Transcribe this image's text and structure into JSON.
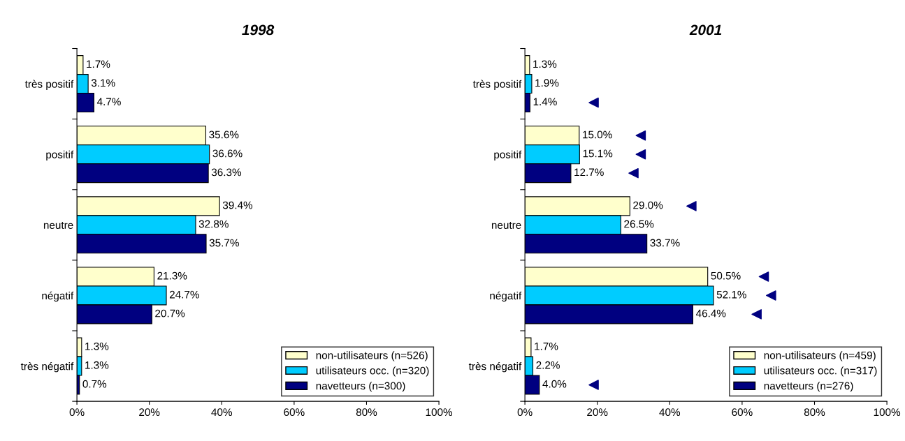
{
  "chart_data": [
    {
      "type": "bar",
      "orientation": "horizontal",
      "title": "1998",
      "categories": [
        "très positif",
        "positif",
        "neutre",
        "négatif",
        "très négatif"
      ],
      "series": [
        {
          "name": "non-utilisateurs (n=526)",
          "color": "#ffffcc",
          "values": [
            1.7,
            35.6,
            39.4,
            21.3,
            1.3
          ],
          "value_labels": [
            "1.7%",
            "35.6%",
            "39.4%",
            "21.3%",
            "1.3%"
          ]
        },
        {
          "name": "utilisateurs occ. (n=320)",
          "color": "#00ccff",
          "values": [
            3.1,
            36.6,
            32.8,
            24.7,
            1.3
          ],
          "value_labels": [
            "3.1%",
            "36.6%",
            "32.8%",
            "24.7%",
            "1.3%"
          ]
        },
        {
          "name": "navetteurs (n=300)",
          "color": "#000080",
          "values": [
            4.7,
            36.3,
            35.7,
            20.7,
            0.7
          ],
          "value_labels": [
            "4.7%",
            "36.3%",
            "35.7%",
            "20.7%",
            "0.7%"
          ]
        }
      ],
      "xlim": [
        0,
        100
      ],
      "xticks": [
        {
          "value": 0,
          "label": "0%"
        },
        {
          "value": 20,
          "label": "20%"
        },
        {
          "value": 40,
          "label": "40%"
        },
        {
          "value": 60,
          "label": "60%"
        },
        {
          "value": 80,
          "label": "80%"
        },
        {
          "value": 100,
          "label": "100%"
        }
      ],
      "grid": false,
      "legend": "bottom right"
    },
    {
      "type": "bar",
      "orientation": "horizontal",
      "title": "2001",
      "categories": [
        "très positif",
        "positif",
        "neutre",
        "négatif",
        "très négatif"
      ],
      "series": [
        {
          "name": "non-utilisateurs (n=459)",
          "color": "#ffffcc",
          "values": [
            1.3,
            15.0,
            29.0,
            50.5,
            1.7
          ],
          "value_labels": [
            "1.3%",
            "15.0%",
            "29.0%",
            "50.5%",
            "1.7%"
          ]
        },
        {
          "name": "utilisateurs occ. (n=317)",
          "color": "#00ccff",
          "values": [
            1.9,
            15.1,
            26.5,
            52.1,
            2.2
          ],
          "value_labels": [
            "1.9%",
            "15.1%",
            "26.5%",
            "52.1%",
            "2.2%"
          ]
        },
        {
          "name": "navetteurs (n=276)",
          "color": "#000080",
          "values": [
            1.4,
            12.7,
            33.7,
            46.4,
            4.0
          ],
          "value_labels": [
            "1.4%",
            "12.7%",
            "33.7%",
            "46.4%",
            "4.0%"
          ]
        },
        {
          "type": "scatter",
          "marker": "triangle",
          "color": "#000080",
          "values": [
            null,
            32,
            46,
            66,
            null
          ]
        },
        {
          "type": "scatter",
          "marker": "triangle",
          "color": "#000080",
          "values": [
            null,
            32,
            null,
            68,
            null
          ]
        },
        {
          "type": "scatter",
          "marker": "triangle",
          "color": "#000080",
          "values": [
            19,
            30,
            null,
            64,
            19
          ]
        }
      ],
      "xlim": [
        0,
        100
      ],
      "xticks": [
        {
          "value": 0,
          "label": "0%"
        },
        {
          "value": 20,
          "label": "20%"
        },
        {
          "value": 40,
          "label": "40%"
        },
        {
          "value": 60,
          "label": "60%"
        },
        {
          "value": 80,
          "label": "80%"
        },
        {
          "value": 100,
          "label": "100%"
        }
      ],
      "grid": false,
      "legend": "bottom right"
    }
  ]
}
